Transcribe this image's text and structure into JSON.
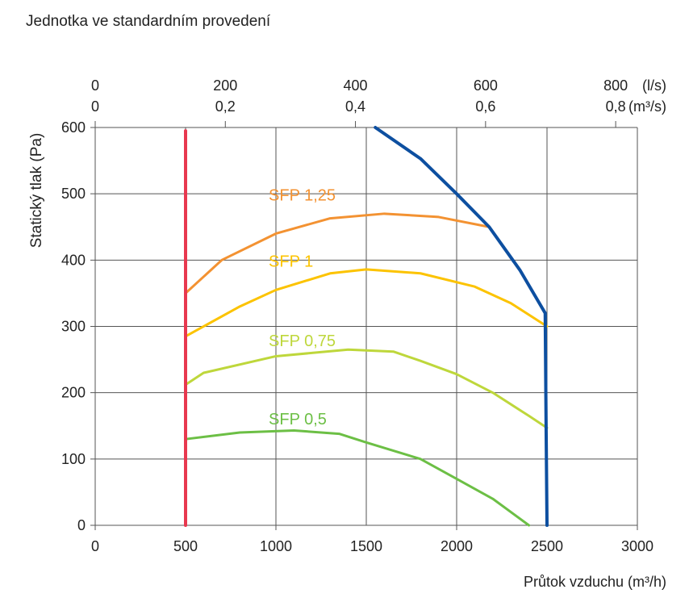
{
  "title": "Jednotka ve standardním provedení",
  "chart_data": {
    "type": "line",
    "xlabel": "Průtok vzduchu  (m³/h)",
    "ylabel": "Statický tlak (Pa)",
    "xlim": [
      0,
      3000
    ],
    "ylim": [
      0,
      600
    ],
    "xticks": [
      0,
      500,
      1000,
      1500,
      2000,
      2500,
      3000
    ],
    "yticks": [
      0,
      100,
      200,
      300,
      400,
      500,
      600
    ],
    "grid": true,
    "top_axis_ls": {
      "unit": "(l/s)",
      "ticks": [
        0,
        200,
        400,
        600,
        800
      ]
    },
    "top_axis_m3s": {
      "unit": "(m³/s)",
      "ticks": [
        "0",
        "0,2",
        "0,4",
        "0,6",
        "0,8"
      ]
    },
    "series": [
      {
        "name": "SFP 1,25",
        "color": "#f39232",
        "points": [
          [
            500,
            350
          ],
          [
            700,
            400
          ],
          [
            1000,
            440
          ],
          [
            1300,
            463
          ],
          [
            1600,
            470
          ],
          [
            1900,
            465
          ],
          [
            2180,
            450
          ]
        ]
      },
      {
        "name": "SFP 1",
        "color": "#fcc300",
        "points": [
          [
            500,
            285
          ],
          [
            800,
            330
          ],
          [
            1000,
            355
          ],
          [
            1300,
            380
          ],
          [
            1500,
            386
          ],
          [
            1800,
            380
          ],
          [
            2100,
            360
          ],
          [
            2300,
            335
          ],
          [
            2500,
            300
          ]
        ]
      },
      {
        "name": "SFP 0,75",
        "color": "#bed73b",
        "points": [
          [
            500,
            212
          ],
          [
            600,
            230
          ],
          [
            1000,
            255
          ],
          [
            1400,
            265
          ],
          [
            1650,
            262
          ],
          [
            1800,
            248
          ],
          [
            2000,
            228
          ],
          [
            2200,
            200
          ],
          [
            2400,
            165
          ],
          [
            2500,
            147
          ]
        ]
      },
      {
        "name": "SFP 0,5",
        "color": "#6cbf45",
        "points": [
          [
            500,
            130
          ],
          [
            800,
            140
          ],
          [
            1100,
            143
          ],
          [
            1350,
            138
          ],
          [
            1500,
            125
          ],
          [
            1800,
            100
          ],
          [
            2000,
            70
          ],
          [
            2200,
            40
          ],
          [
            2400,
            0
          ]
        ]
      },
      {
        "color": "#e8384f",
        "points": [
          [
            500,
            0
          ],
          [
            500,
            595
          ]
        ]
      },
      {
        "color": "#0d4fa0",
        "points": [
          [
            1550,
            600
          ],
          [
            1800,
            553
          ],
          [
            2000,
            500
          ],
          [
            2180,
            450
          ],
          [
            2350,
            385
          ],
          [
            2490,
            320
          ],
          [
            2495,
            150
          ],
          [
            2500,
            0
          ]
        ]
      }
    ],
    "labels": [
      {
        "text": "SFP 1,25",
        "x": 960,
        "y": 490,
        "color": "#f39232"
      },
      {
        "text": "SFP 1",
        "x": 960,
        "y": 390,
        "color": "#fcc300"
      },
      {
        "text": "SFP 0,75",
        "x": 960,
        "y": 270,
        "color": "#bed73b"
      },
      {
        "text": "SFP 0,5",
        "x": 960,
        "y": 152,
        "color": "#6cbf45"
      }
    ]
  }
}
